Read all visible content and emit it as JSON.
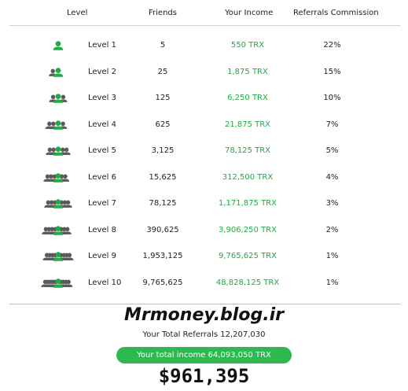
{
  "header": {
    "level": "Level",
    "friends": "Friends",
    "income": "Your Income",
    "commission": "Referrals Commission"
  },
  "rows": [
    {
      "level": "Level 1",
      "friends": "5",
      "income": "550 TRX",
      "commission": "22%"
    },
    {
      "level": "Level 2",
      "friends": "25",
      "income": "1,875 TRX",
      "commission": "15%"
    },
    {
      "level": "Level 3",
      "friends": "125",
      "income": "6,250 TRX",
      "commission": "10%"
    },
    {
      "level": "Level 4",
      "friends": "625",
      "income": "21,875 TRX",
      "commission": "7%"
    },
    {
      "level": "Level 5",
      "friends": "3,125",
      "income": "78,125 TRX",
      "commission": "5%"
    },
    {
      "level": "Level 6",
      "friends": "15,625",
      "income": "312,500 TRX",
      "commission": "4%"
    },
    {
      "level": "Level 7",
      "friends": "78,125",
      "income": "1,171,875 TRX",
      "commission": "3%"
    },
    {
      "level": "Level 8",
      "friends": "390,625",
      "income": "3,906,250 TRX",
      "commission": "2%"
    },
    {
      "level": "Level 9",
      "friends": "1,953,125",
      "income": "9,765,625 TRX",
      "commission": "1%"
    },
    {
      "level": "Level 10",
      "friends": "9,765,625",
      "income": "48,828,125 TRX",
      "commission": "1%"
    }
  ],
  "summary": {
    "site": "Mrmoney.blog.ir",
    "total_referrals": "Your Total Referrals 12,207,030",
    "total_income": "Your total income 64,093,050 TRX",
    "usd": "$961,395"
  },
  "icons": {
    "people_icon": "people-group-icon",
    "accent_color": "#22aa44",
    "grey_color": "#5a5a5a"
  }
}
